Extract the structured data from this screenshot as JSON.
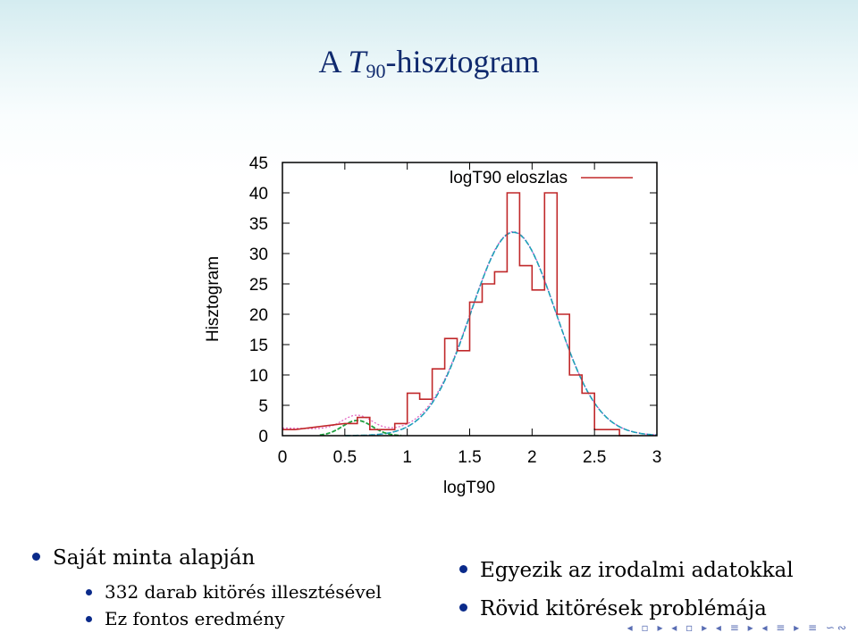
{
  "slide": {
    "title_prefix": "A ",
    "title_symbol": "T",
    "title_subscript": "90",
    "title_suffix": "-hisztogram"
  },
  "bullets_left": {
    "main": "Saját minta alapján",
    "sub": [
      "332 darab kitörés illesztésével",
      "Ez fontos eredmény"
    ]
  },
  "bullets_right": [
    "Egyezik az irodalmi adatokkal",
    "Rövid kitörések problémája"
  ],
  "colors": {
    "title": "#102a6e",
    "histogram": "#c0282a",
    "fit_total": "#e060c0",
    "fit_long": "#2070d0",
    "fit_long_2": "#20b0b0",
    "fit_short": "#20a040",
    "bullet": "#0a2a8a"
  },
  "chart_data": {
    "type": "histogram",
    "xlabel": "logT90",
    "ylabel": "Hisztogram",
    "xlim": [
      0,
      3
    ],
    "ylim": [
      0,
      45
    ],
    "xticks": [
      "0",
      "0.5",
      "1",
      "1.5",
      "2",
      "2.5",
      "3"
    ],
    "yticks": [
      "0",
      "5",
      "10",
      "15",
      "20",
      "25",
      "30",
      "35",
      "40",
      "45"
    ],
    "legend": "logT90 eloszlas",
    "legend_position": "top-right",
    "bin_width": 0.1,
    "bins_start": [
      0.0,
      0.5,
      0.6,
      0.7,
      0.8,
      0.9,
      1.0,
      1.1,
      1.2,
      1.3,
      1.4,
      1.5,
      1.6,
      1.7,
      1.8,
      1.9,
      2.0,
      2.1,
      2.2,
      2.3,
      2.4,
      2.5,
      2.6,
      2.7
    ],
    "counts": [
      1,
      2,
      3,
      1,
      1,
      2,
      7,
      6,
      11,
      16,
      14,
      22,
      25,
      27,
      40,
      28,
      24,
      40,
      20,
      10,
      7,
      1,
      1,
      0
    ],
    "fits": [
      {
        "component": "long",
        "mean": 1.85,
        "sigma": 0.34,
        "peak": 33.5
      },
      {
        "component": "short",
        "mean": 0.6,
        "sigma": 0.12,
        "peak": 2.5
      },
      {
        "component": "total_baseline",
        "value_at_0": 1.8
      }
    ]
  }
}
